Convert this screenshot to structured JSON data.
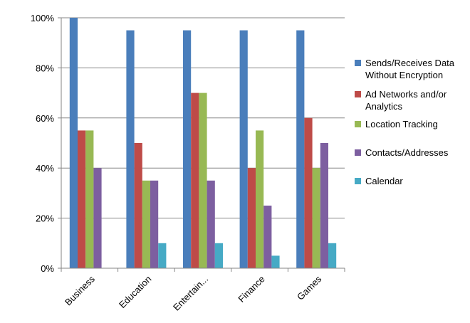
{
  "chart_data": {
    "type": "bar",
    "categories": [
      "Business",
      "Education",
      "Entertain...",
      "Finance",
      "Games"
    ],
    "series": [
      {
        "name": "Sends/Receives Data Without Encryption",
        "color": "#4a7ebb",
        "values": [
          100,
          95,
          95,
          95,
          95
        ]
      },
      {
        "name": "Ad Networks and/or Analytics",
        "color": "#be4b48",
        "values": [
          55,
          50,
          70,
          40,
          60
        ]
      },
      {
        "name": "Location Tracking",
        "color": "#98b954",
        "values": [
          55,
          35,
          70,
          55,
          40
        ]
      },
      {
        "name": "Contacts/Addresses",
        "color": "#7d5fa0",
        "values": [
          40,
          35,
          35,
          25,
          50
        ]
      },
      {
        "name": "Calendar",
        "color": "#46aac5",
        "values": [
          0,
          10,
          10,
          5,
          10
        ]
      }
    ],
    "yticks": [
      "0%",
      "20%",
      "40%",
      "60%",
      "80%",
      "100%"
    ],
    "ylim": [
      0,
      100
    ],
    "title": "",
    "xlabel": "",
    "ylabel": "",
    "grid": true,
    "legend_position": "right"
  }
}
